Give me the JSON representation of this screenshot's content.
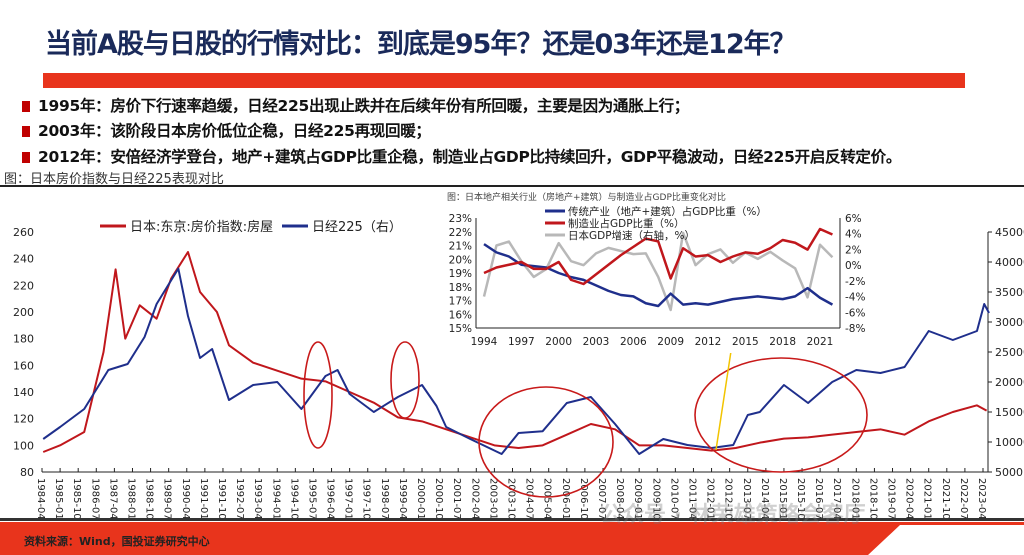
{
  "title": "当前A股与日股的行情对比：到底是95年？还是03年还是12年？",
  "bullets": [
    "1995年：房价下行速率趋缓，日经225出现止跌并在后续年份有所回暖，主要是因为通胀上行；",
    "2003年：该阶段日本房价低位企稳，日经225再现回暖；",
    "2012年：安倍经济学登台，地产+建筑占GDP比重企稳，制造业占GDP比持续回升，GDP平稳波动，日经225开启反转定价。"
  ],
  "caption": "图：日本房价指数与日经225表现对比",
  "source": "资料来源：Wind，国投证券研究中心",
  "watermark": "公众号 · 林荣雄策略会客厅",
  "colors": {
    "red": "#c0171c",
    "blue": "#1f2f8c",
    "gray": "#b8b8b8",
    "accent": "#e8341c"
  },
  "chart_data": [
    {
      "type": "line",
      "title": "",
      "legend": [
        "日本:东京:房价指数:房屋",
        "日经225（右）"
      ],
      "legend_placement": "top-left",
      "ylim": [
        80,
        260
      ],
      "yticks": [
        80,
        100,
        120,
        140,
        160,
        180,
        200,
        220,
        240,
        260
      ],
      "y2lim": [
        5000,
        45000
      ],
      "y2ticks": [
        5000,
        10000,
        15000,
        20000,
        25000,
        30000,
        35000,
        40000,
        45000
      ],
      "xticks": [
        "1984-04",
        "1985-01",
        "1985-10",
        "1986-07",
        "1987-04",
        "1988-01",
        "1988-10",
        "1989-07",
        "1990-04",
        "1991-01",
        "1991-10",
        "1992-07",
        "1993-04",
        "1994-01",
        "1994-10",
        "1995-07",
        "1996-04",
        "1997-01",
        "1997-10",
        "1998-07",
        "1999-04",
        "2000-01",
        "2000-10",
        "2001-07",
        "2002-04",
        "2003-01",
        "2003-10",
        "2004-07",
        "2005-04",
        "2006-01",
        "2006-10",
        "2007-07",
        "2008-04",
        "2009-01",
        "2009-10",
        "2010-07",
        "2011-04",
        "2012-01",
        "2012-10",
        "2013-07",
        "2014-04",
        "2015-01",
        "2015-10",
        "2016-07",
        "2017-04",
        "2018-01",
        "2018-10",
        "2019-07",
        "2020-04",
        "2021-01",
        "2021-10",
        "2022-07",
        "2023-04"
      ],
      "series": [
        {
          "name": "日本:东京:房价指数:房屋",
          "axis": "left",
          "x": [
            1984.3,
            1985,
            1986,
            1986.8,
            1987.3,
            1987.7,
            1988.3,
            1989,
            1989.6,
            1990.3,
            1990.8,
            1991.5,
            1992,
            1993,
            1994,
            1995,
            1996,
            1997,
            1998,
            1999,
            2000,
            2001,
            2002,
            2003,
            2004,
            2005,
            2006,
            2007,
            2008,
            2009,
            2010,
            2011,
            2012,
            2013,
            2014,
            2015,
            2016,
            2017,
            2018,
            2019,
            2020,
            2021,
            2022,
            2023,
            2023.4
          ],
          "y": [
            95,
            100,
            110,
            170,
            232,
            180,
            205,
            195,
            225,
            245,
            215,
            200,
            175,
            162,
            156,
            150,
            148,
            140,
            132,
            121,
            118,
            112,
            106,
            100,
            98,
            100,
            108,
            116,
            112,
            100,
            100,
            98,
            96,
            98,
            102,
            105,
            106,
            108,
            110,
            112,
            108,
            118,
            125,
            130,
            126
          ]
        },
        {
          "name": "日经225（右）",
          "axis": "right",
          "x": [
            1984.3,
            1985,
            1986,
            1987,
            1987.8,
            1988.5,
            1989,
            1989.9,
            1990.3,
            1990.8,
            1991.3,
            1992,
            1993,
            1994,
            1995,
            1996,
            1996.5,
            1997,
            1998,
            1999,
            2000,
            2000.6,
            2001,
            2002,
            2003.3,
            2004,
            2005,
            2006,
            2007,
            2008,
            2009,
            2010,
            2011,
            2012,
            2012.9,
            2013.5,
            2014,
            2015,
            2016,
            2017,
            2018,
            2019,
            2020,
            2021,
            2022,
            2023,
            2023.3,
            2023.5
          ],
          "y": [
            10500,
            12500,
            15500,
            22000,
            23000,
            27500,
            33000,
            38900,
            31000,
            24000,
            25500,
            17000,
            19500,
            20000,
            15500,
            21000,
            22000,
            18000,
            15000,
            17500,
            19500,
            16000,
            12500,
            10500,
            8000,
            11500,
            11800,
            16500,
            17500,
            13000,
            8000,
            10500,
            9500,
            9000,
            9500,
            14500,
            15000,
            19500,
            16500,
            20000,
            22000,
            21500,
            22500,
            28500,
            27000,
            28500,
            33000,
            31500
          ]
        }
      ],
      "annotations": [
        "ellipse-1995",
        "ellipse-1999",
        "ellipse-2003-2007",
        "ellipse-2012-2018",
        "yellow-line-2012"
      ]
    },
    {
      "type": "line",
      "title": "图：日本地产相关行业（房地产+建筑）与制造业占GDP比重变化对比",
      "ylim": [
        15,
        23
      ],
      "yticks": [
        "15%",
        "16%",
        "17%",
        "18%",
        "19%",
        "20%",
        "21%",
        "22%",
        "23%"
      ],
      "y2lim": [
        -8,
        6
      ],
      "y2ticks": [
        "-8%",
        "-6%",
        "-4%",
        "-2%",
        "0%",
        "2%",
        "4%",
        "6%"
      ],
      "xticks": [
        "1994",
        "1997",
        "2000",
        "2003",
        "2006",
        "2009",
        "2012",
        "2015",
        "2018",
        "2021"
      ],
      "x": [
        1994,
        1995,
        1996,
        1997,
        1998,
        1999,
        2000,
        2001,
        2002,
        2003,
        2004,
        2005,
        2006,
        2007,
        2008,
        2009,
        2010,
        2011,
        2012,
        2013,
        2014,
        2015,
        2016,
        2017,
        2018,
        2019,
        2020,
        2021,
        2022
      ],
      "series": [
        {
          "name": "传统产业（地产+建筑）占GDP比重（%）",
          "axis": "left",
          "values": [
            21.1,
            20.5,
            20.2,
            19.6,
            19.5,
            19.4,
            19.0,
            18.7,
            18.5,
            18.1,
            17.7,
            17.4,
            17.3,
            16.8,
            16.6,
            17.5,
            16.7,
            16.8,
            16.7,
            16.9,
            17.1,
            17.2,
            17.3,
            17.2,
            17.1,
            17.3,
            17.9,
            17.2,
            16.7
          ]
        },
        {
          "name": "制造业占GDP比重（%）",
          "axis": "left",
          "values": [
            19.0,
            19.4,
            19.6,
            19.8,
            19.3,
            19.3,
            19.8,
            18.5,
            18.2,
            18.9,
            19.6,
            20.3,
            20.9,
            21.5,
            21.3,
            18.6,
            20.8,
            20.2,
            20.3,
            19.8,
            20.2,
            20.5,
            20.4,
            20.8,
            21.4,
            21.2,
            20.7,
            22.2,
            21.8
          ]
        },
        {
          "name": "日本GDP增速（右轴，%）",
          "axis": "right",
          "values": [
            -4,
            2.5,
            3,
            0.5,
            -1.5,
            -0.5,
            2.8,
            0.5,
            0,
            1.5,
            2.2,
            1.8,
            1.4,
            1.5,
            -1.5,
            -5.7,
            4.1,
            0,
            1.4,
            2,
            0.3,
            1.6,
            0.8,
            1.7,
            0.6,
            -0.4,
            -4.1,
            2.6,
            1.0
          ]
        }
      ]
    }
  ]
}
